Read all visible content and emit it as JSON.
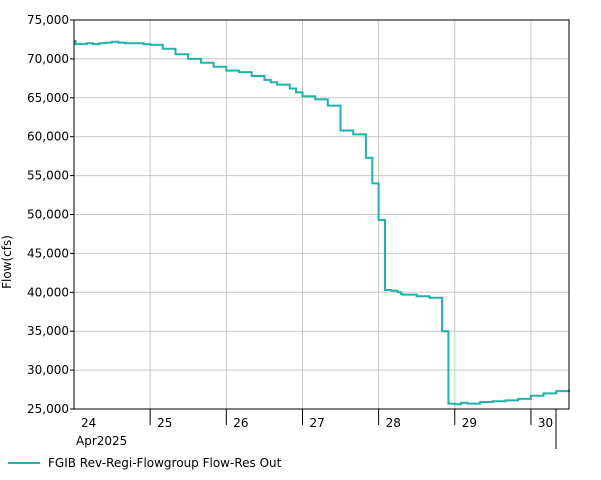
{
  "colors": {
    "series": "#20b2aa",
    "grid": "#c8c8c8",
    "axis": "#000000"
  },
  "chart_data": {
    "type": "line",
    "title": "",
    "ylabel": "Flow(cfs)",
    "xlabel": "",
    "month_label": "Apr2025",
    "ylim": [
      25000,
      75000
    ],
    "y_ticks": [
      25000,
      30000,
      35000,
      40000,
      45000,
      50000,
      55000,
      60000,
      65000,
      70000,
      75000
    ],
    "y_tick_labels": [
      "25,000",
      "30,000",
      "35,000",
      "40,000",
      "45,000",
      "50,000",
      "55,000",
      "60,000",
      "65,000",
      "70,000",
      "75,000"
    ],
    "xlim": [
      "2025-04-24 00:00",
      "2025-04-30 12:00"
    ],
    "x_ticks": [
      "2025-04-24",
      "2025-04-25",
      "2025-04-26",
      "2025-04-27",
      "2025-04-28",
      "2025-04-29",
      "2025-04-30"
    ],
    "x_tick_labels": [
      "24",
      "25",
      "26",
      "27",
      "28",
      "29",
      "30"
    ],
    "grid": true,
    "legend_position": "bottom-left",
    "series": [
      {
        "name": "FGIB Rev-Regi-Flowgroup Flow-Res Out",
        "step": true,
        "x": [
          "2025-04-24 00:00",
          "2025-04-24 00:30",
          "2025-04-24 02:00",
          "2025-04-24 04:00",
          "2025-04-24 06:00",
          "2025-04-24 08:00",
          "2025-04-24 10:00",
          "2025-04-24 12:00",
          "2025-04-24 14:00",
          "2025-04-24 16:00",
          "2025-04-24 18:00",
          "2025-04-24 20:00",
          "2025-04-24 22:00",
          "2025-04-25 00:00",
          "2025-04-25 04:00",
          "2025-04-25 08:00",
          "2025-04-25 12:00",
          "2025-04-25 16:00",
          "2025-04-25 20:00",
          "2025-04-26 00:00",
          "2025-04-26 04:00",
          "2025-04-26 08:00",
          "2025-04-26 12:00",
          "2025-04-26 14:00",
          "2025-04-26 16:00",
          "2025-04-26 20:00",
          "2025-04-26 22:00",
          "2025-04-27 00:00",
          "2025-04-27 04:00",
          "2025-04-27 08:00",
          "2025-04-27 12:00",
          "2025-04-27 16:00",
          "2025-04-27 20:00",
          "2025-04-27 22:00",
          "2025-04-28 00:00",
          "2025-04-28 02:00",
          "2025-04-28 04:00",
          "2025-04-28 06:00",
          "2025-04-28 07:00",
          "2025-04-28 07:30",
          "2025-04-28 12:00",
          "2025-04-28 16:00",
          "2025-04-28 20:00",
          "2025-04-28 22:00",
          "2025-04-29 00:00",
          "2025-04-29 02:00",
          "2025-04-29 04:00",
          "2025-04-29 08:00",
          "2025-04-29 12:00",
          "2025-04-29 16:00",
          "2025-04-29 20:00",
          "2025-04-30 00:00",
          "2025-04-30 04:00",
          "2025-04-30 08:00",
          "2025-04-30 12:00"
        ],
        "y": [
          72300,
          71900,
          71900,
          72000,
          71900,
          72000,
          72100,
          72200,
          72100,
          72000,
          72000,
          72000,
          71900,
          71800,
          71300,
          70600,
          70000,
          69500,
          69000,
          68500,
          68300,
          67800,
          67300,
          67000,
          66700,
          66200,
          65700,
          65200,
          64800,
          64000,
          60800,
          60300,
          57300,
          54000,
          49300,
          40300,
          40200,
          40000,
          39800,
          39700,
          39500,
          39300,
          35000,
          25700,
          25600,
          25800,
          25700,
          25900,
          26000,
          26100,
          26300,
          26700,
          27000,
          27300,
          27500
        ]
      }
    ]
  }
}
